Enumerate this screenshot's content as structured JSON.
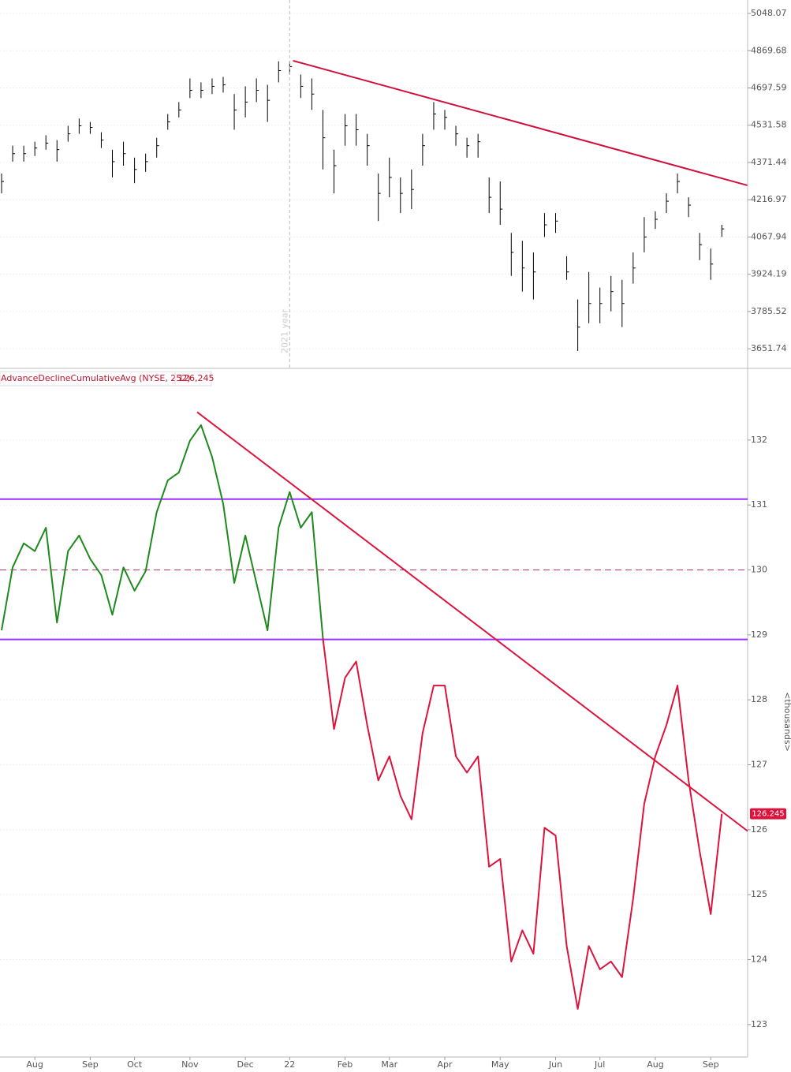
{
  "chart_data": [
    {
      "type": "ohlc",
      "log_scale": true,
      "color": "#000000",
      "ylim": [
        3586,
        5114
      ],
      "yticks": [
        5048.07,
        4869.68,
        4697.59,
        4531.58,
        4371.44,
        4216.97,
        4067.94,
        3924.19,
        3785.52,
        3651.74
      ],
      "high": [
        4325,
        4443,
        4443,
        4460,
        4488,
        4467,
        4529,
        4561,
        4546,
        4501,
        4426,
        4460,
        4392,
        4409,
        4477,
        4581,
        4634,
        4741,
        4723,
        4741,
        4748,
        4670,
        4705,
        4741,
        4712,
        4820,
        4820,
        4759,
        4741,
        4599,
        4426,
        4581,
        4581,
        4494,
        4325,
        4392,
        4309,
        4342,
        4494,
        4634,
        4599,
        4529,
        4477,
        4494,
        4309,
        4292,
        4084,
        4053,
        4008,
        4163,
        4163,
        3993,
        3830,
        3933,
        3874,
        3918,
        3903,
        4008,
        4147,
        4170,
        4243,
        4325,
        4227,
        4084,
        4023,
        4116
      ],
      "low": [
        4243,
        4375,
        4375,
        4399,
        4426,
        4375,
        4460,
        4494,
        4494,
        4433,
        4309,
        4358,
        4285,
        4332,
        4392,
        4512,
        4566,
        4652,
        4652,
        4670,
        4677,
        4512,
        4566,
        4634,
        4546,
        4723,
        4759,
        4652,
        4599,
        4342,
        4243,
        4443,
        4443,
        4358,
        4131,
        4227,
        4163,
        4179,
        4358,
        4512,
        4512,
        4443,
        4392,
        4392,
        4163,
        4116,
        3918,
        3859,
        3830,
        4068,
        4084,
        3903,
        3644,
        3743,
        3743,
        3786,
        3729,
        3889,
        4008,
        4100,
        4163,
        4243,
        4147,
        3978,
        3903,
        4068
      ],
      "close": [
        4292,
        4409,
        4409,
        4433,
        4454,
        4426,
        4494,
        4529,
        4522,
        4467,
        4375,
        4409,
        4342,
        4375,
        4443,
        4546,
        4599,
        4687,
        4687,
        4705,
        4712,
        4599,
        4634,
        4687,
        4642,
        4777,
        4795,
        4705,
        4670,
        4477,
        4358,
        4529,
        4512,
        4443,
        4243,
        4309,
        4243,
        4259,
        4443,
        4581,
        4566,
        4494,
        4443,
        4460,
        4227,
        4179,
        4008,
        3948,
        3933,
        4116,
        4131,
        3933,
        3729,
        3815,
        3815,
        3859,
        3815,
        3948,
        4068,
        4138,
        4211,
        4292,
        4195,
        4038,
        3963,
        4100
      ],
      "year_marker": {
        "x": 26,
        "label": "2021 year"
      },
      "trendlines": [
        {
          "x": [
            26.3,
            67.3
          ],
          "y": [
            4823,
            4276
          ],
          "color": "#d0103a"
        }
      ]
    },
    {
      "type": "line",
      "title": "AdvanceDeclineCumulativeAvg (NYSE, 252)",
      "legend_value": "126,245",
      "y_axis_label": "<thousands>",
      "up_color": "#1e8a1e",
      "down_color": "#dc143c",
      "ylim": [
        122.5,
        132.8
      ],
      "yticks": [
        123,
        124,
        125,
        126,
        127,
        128,
        129,
        130,
        131,
        132
      ],
      "categories": [
        null,
        null,
        null,
        "Aug",
        null,
        null,
        null,
        null,
        "Sep",
        null,
        null,
        null,
        "Oct",
        null,
        null,
        null,
        null,
        "Nov",
        null,
        null,
        null,
        null,
        "Dec",
        null,
        null,
        null,
        "22",
        null,
        null,
        null,
        null,
        "Feb",
        null,
        null,
        null,
        "Mar",
        null,
        null,
        null,
        null,
        "Apr",
        null,
        null,
        null,
        null,
        "May",
        null,
        null,
        null,
        null,
        "Jun",
        null,
        null,
        null,
        "Jul",
        null,
        null,
        null,
        null,
        "Aug",
        null,
        null,
        null,
        null,
        "Sep",
        null
      ],
      "values": [
        129.07,
        130.04,
        130.41,
        130.29,
        130.65,
        129.19,
        130.29,
        130.53,
        130.17,
        129.92,
        129.31,
        130.04,
        129.68,
        129.98,
        130.89,
        131.38,
        131.5,
        131.99,
        132.23,
        131.74,
        131.02,
        129.8,
        130.53,
        129.8,
        129.07,
        130.65,
        131.2,
        130.65,
        130.89,
        128.95,
        127.55,
        128.34,
        128.59,
        127.61,
        126.76,
        127.13,
        126.52,
        126.16,
        127.49,
        128.22,
        128.22,
        127.13,
        126.88,
        127.13,
        125.43,
        125.55,
        123.97,
        124.45,
        124.09,
        126.03,
        125.91,
        124.21,
        123.24,
        124.21,
        123.85,
        123.97,
        123.73,
        124.94,
        126.4,
        127.13,
        127.61,
        128.22,
        126.76,
        125.67,
        124.7,
        126.245
      ],
      "hlines": [
        {
          "value": 131.09,
          "color": "#9b30ff"
        },
        {
          "value": 128.93,
          "color": "#9b30ff"
        },
        {
          "value": 130,
          "color": "#c0306a",
          "dashed": true
        }
      ],
      "trendlines": [
        {
          "x": [
            17.65,
            67.33
          ],
          "y": [
            132.43,
            125.98
          ],
          "color": "#dc143c"
        }
      ]
    }
  ]
}
